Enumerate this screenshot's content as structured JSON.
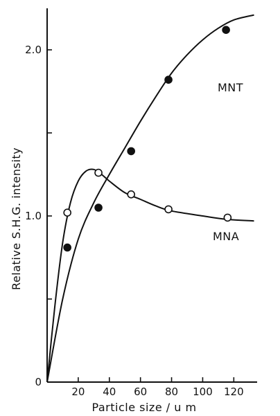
{
  "chart_data": {
    "type": "line",
    "xlabel": "Particle size / u m",
    "ylabel": "Relative S.H.G. intensity",
    "xlim": [
      0,
      135
    ],
    "ylim": [
      0,
      2.25
    ],
    "x_ticks": [
      20,
      40,
      60,
      80,
      100,
      120
    ],
    "x_tick_labels": [
      "20",
      "40",
      "60",
      "80",
      "100",
      "120"
    ],
    "y_ticks": [
      0,
      0.5,
      1.0,
      1.5,
      2.0
    ],
    "y_tick_labels": [
      "0",
      "",
      "1.0",
      "",
      "2.0"
    ],
    "grid": false,
    "series": [
      {
        "name": "MNT",
        "marker": "filled-circle",
        "points": [
          {
            "x": 13,
            "y": 0.81
          },
          {
            "x": 33,
            "y": 1.05
          },
          {
            "x": 54,
            "y": 1.39
          },
          {
            "x": 78,
            "y": 1.82
          },
          {
            "x": 115,
            "y": 2.12
          }
        ],
        "curve": [
          {
            "x": 0,
            "y": 0
          },
          {
            "x": 10,
            "y": 0.5
          },
          {
            "x": 20,
            "y": 0.86
          },
          {
            "x": 30,
            "y": 1.08
          },
          {
            "x": 40,
            "y": 1.25
          },
          {
            "x": 50,
            "y": 1.41
          },
          {
            "x": 60,
            "y": 1.57
          },
          {
            "x": 70,
            "y": 1.72
          },
          {
            "x": 80,
            "y": 1.86
          },
          {
            "x": 90,
            "y": 1.97
          },
          {
            "x": 100,
            "y": 2.06
          },
          {
            "x": 110,
            "y": 2.13
          },
          {
            "x": 120,
            "y": 2.18
          },
          {
            "x": 133,
            "y": 2.21
          }
        ]
      },
      {
        "name": "MNA",
        "marker": "open-circle",
        "points": [
          {
            "x": 13,
            "y": 1.02
          },
          {
            "x": 33,
            "y": 1.26
          },
          {
            "x": 54,
            "y": 1.13
          },
          {
            "x": 78,
            "y": 1.04
          },
          {
            "x": 116,
            "y": 0.99
          }
        ],
        "curve": [
          {
            "x": 0,
            "y": 0
          },
          {
            "x": 5,
            "y": 0.46
          },
          {
            "x": 10,
            "y": 0.84
          },
          {
            "x": 15,
            "y": 1.08
          },
          {
            "x": 20,
            "y": 1.21
          },
          {
            "x": 25,
            "y": 1.27
          },
          {
            "x": 30,
            "y": 1.28
          },
          {
            "x": 35,
            "y": 1.25
          },
          {
            "x": 40,
            "y": 1.21
          },
          {
            "x": 50,
            "y": 1.14
          },
          {
            "x": 60,
            "y": 1.1
          },
          {
            "x": 70,
            "y": 1.06
          },
          {
            "x": 80,
            "y": 1.03
          },
          {
            "x": 100,
            "y": 1.0
          },
          {
            "x": 115,
            "y": 0.98
          },
          {
            "x": 133,
            "y": 0.97
          }
        ]
      }
    ],
    "annotations": [
      "MNT",
      "MNA"
    ]
  }
}
